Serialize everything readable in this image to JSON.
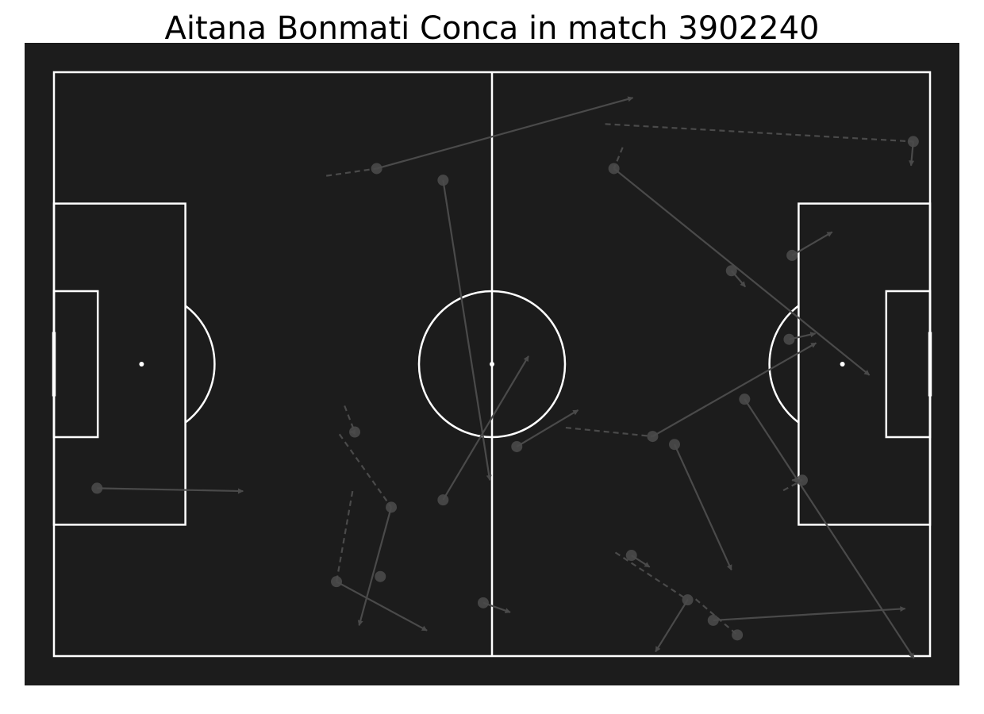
{
  "title": "Aitana Bonmati Conca in match 3902240",
  "colors": {
    "pitch_background": "#1c1c1c",
    "pitch_lines": "#ffffff",
    "event_marks": "#4a4a4a",
    "title_text": "#000000"
  },
  "chart_data": {
    "type": "scatter",
    "pitch": {
      "length": 120,
      "width": 80,
      "orientation": "horizontal"
    },
    "title": "Aitana Bonmati Conca in match 3902240",
    "events": [
      {
        "x": 44.2,
        "y": 13.2,
        "end_x": 79.3,
        "end_y": 3.5,
        "carry_from_x": 37.3,
        "carry_from_y": 14.2
      },
      {
        "x": 53.3,
        "y": 14.8,
        "end_x": 59.7,
        "end_y": 55.9
      },
      {
        "x": 76.7,
        "y": 13.2,
        "end_x": 111.7,
        "end_y": 41.5,
        "carry_from_x": 77.9,
        "carry_from_y": 10.3
      },
      {
        "x": 117.7,
        "y": 9.5,
        "end_x": 117.4,
        "end_y": 12.8,
        "carry_from_x": 75.5,
        "carry_from_y": 7.1
      },
      {
        "x": 92.8,
        "y": 27.2,
        "end_x": 94.7,
        "end_y": 29.4
      },
      {
        "x": 101.1,
        "y": 25.1,
        "end_x": 106.6,
        "end_y": 21.9
      },
      {
        "x": 100.7,
        "y": 36.6,
        "end_x": 104.3,
        "end_y": 35.8
      },
      {
        "x": 82.0,
        "y": 49.9,
        "end_x": 104.4,
        "end_y": 37.1,
        "carry_from_x": 70.1,
        "carry_from_y": 48.7
      },
      {
        "x": 63.4,
        "y": 51.3,
        "end_x": 71.8,
        "end_y": 46.3
      },
      {
        "x": 85.0,
        "y": 51.0,
        "end_x": 92.8,
        "end_y": 68.2
      },
      {
        "x": 94.6,
        "y": 44.8,
        "end_x": 117.8,
        "end_y": 80.3
      },
      {
        "x": 102.5,
        "y": 55.9,
        "end_x": 101.1,
        "end_y": 55.9,
        "carry_from_x": 99.9,
        "carry_from_y": 57.3
      },
      {
        "x": 58.8,
        "y": 72.7,
        "end_x": 62.5,
        "end_y": 74.0
      },
      {
        "x": 79.1,
        "y": 66.2,
        "end_x": 81.6,
        "end_y": 67.8
      },
      {
        "x": 86.8,
        "y": 72.3,
        "end_x": 82.4,
        "end_y": 79.4,
        "carry_from_x": 76.9,
        "carry_from_y": 65.8
      },
      {
        "x": 90.3,
        "y": 75.1,
        "end_x": 116.6,
        "end_y": 73.5
      },
      {
        "x": 93.6,
        "y": 77.1,
        "end_x": 93.6,
        "end_y": 77.1,
        "carry_from_x": 87.9,
        "carry_from_y": 72.2
      },
      {
        "x": 53.3,
        "y": 58.6,
        "end_x": 65.0,
        "end_y": 38.9
      },
      {
        "x": 41.2,
        "y": 49.3,
        "end_x": 40.6,
        "end_y": 49.3,
        "carry_from_x": 39.8,
        "carry_from_y": 45.7
      },
      {
        "x": 46.2,
        "y": 59.6,
        "end_x": 41.8,
        "end_y": 75.8,
        "carry_from_x": 39.1,
        "carry_from_y": 49.6
      },
      {
        "x": 38.7,
        "y": 69.8,
        "end_x": 51.1,
        "end_y": 76.5,
        "carry_from_x": 40.9,
        "carry_from_y": 57.4
      },
      {
        "x": 44.7,
        "y": 69.1,
        "end_x": 44.7,
        "end_y": 69.1
      },
      {
        "x": 5.9,
        "y": 57.0,
        "end_x": 25.9,
        "end_y": 57.4
      }
    ]
  }
}
